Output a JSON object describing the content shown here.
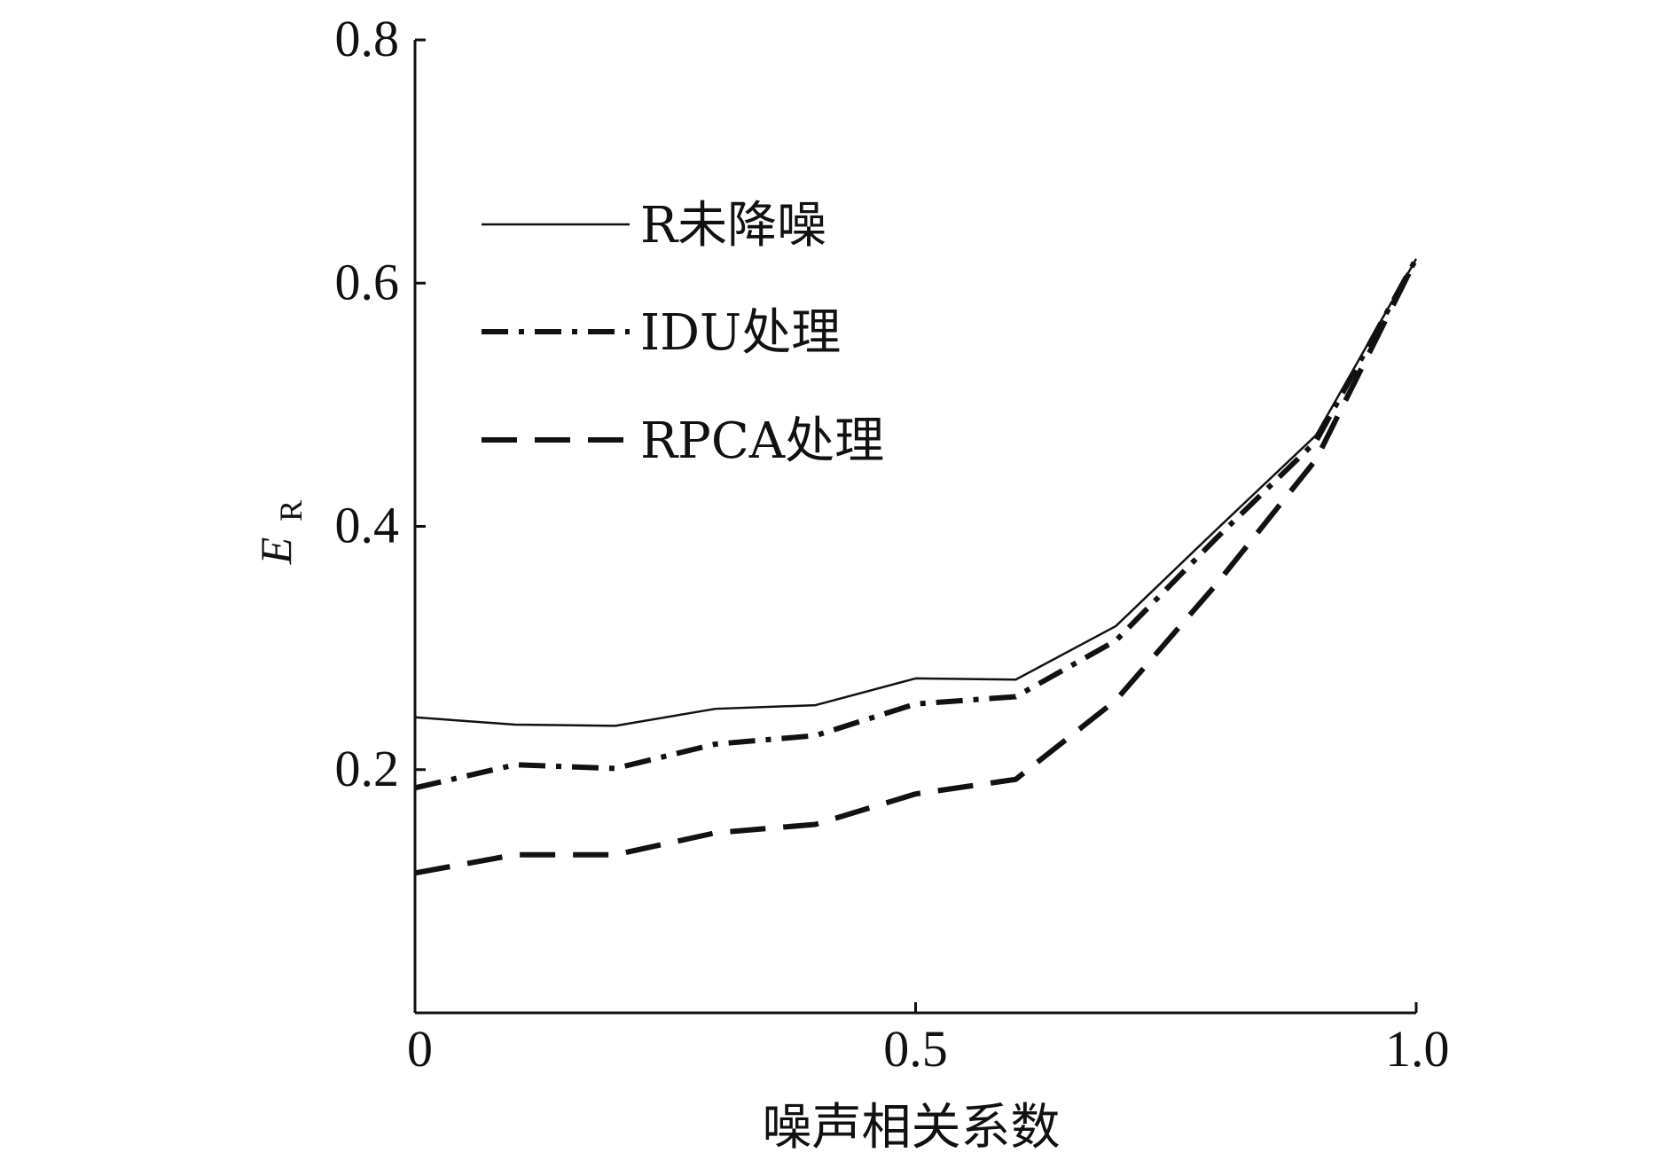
{
  "chart_data": {
    "type": "line",
    "title": "",
    "xlabel": "噪声相关系数",
    "ylabel_main": "E",
    "ylabel_sub": "R",
    "xlim": [
      0,
      1.0
    ],
    "ylim": [
      0.0,
      0.8
    ],
    "x_ticks": [
      {
        "value": 0,
        "label": "0"
      },
      {
        "value": 0.5,
        "label": "0.5"
      },
      {
        "value": 1.0,
        "label": "1.0"
      }
    ],
    "y_ticks": [
      {
        "value": 0.2,
        "label": "0.2"
      },
      {
        "value": 0.4,
        "label": "0.4"
      },
      {
        "value": 0.6,
        "label": "0.6"
      },
      {
        "value": 0.8,
        "label": "0.8"
      }
    ],
    "grid": false,
    "legend_position": "top-left",
    "x": [
      0,
      0.1,
      0.2,
      0.3,
      0.4,
      0.5,
      0.6,
      0.7,
      0.8,
      0.9,
      1.0
    ],
    "series": [
      {
        "name": "R未降噪",
        "style": "solid",
        "values": [
          0.243,
          0.237,
          0.236,
          0.25,
          0.253,
          0.275,
          0.274,
          0.318,
          0.397,
          0.475,
          0.62
        ]
      },
      {
        "name": "IDU处理",
        "style": "dashdot",
        "values": [
          0.185,
          0.204,
          0.201,
          0.221,
          0.228,
          0.254,
          0.26,
          0.306,
          0.39,
          0.47,
          0.62
        ]
      },
      {
        "name": "RPCA处理",
        "style": "dashed",
        "values": [
          0.115,
          0.13,
          0.13,
          0.148,
          0.155,
          0.18,
          0.192,
          0.257,
          0.352,
          0.455,
          0.62
        ]
      }
    ]
  }
}
